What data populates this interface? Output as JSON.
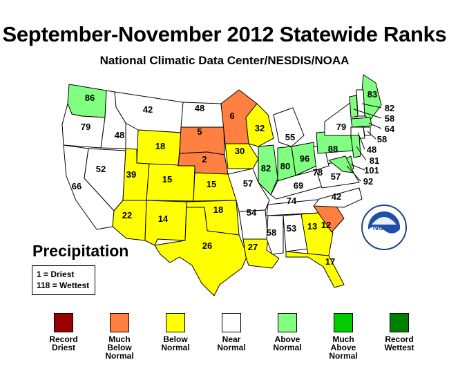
{
  "title": "September-November 2012 Statewide Ranks",
  "subtitle": "National Climatic Data Center/NESDIS/NOAA",
  "variable": "Precipitation",
  "key": {
    "driest": "1 = Driest",
    "wettest": "118 = Wettest"
  },
  "logo_text": "NOAA",
  "colors": {
    "record_driest": "#990000",
    "much_below": "#ff8040",
    "below": "#ffff00",
    "near": "#ffffff",
    "above": "#80ff80",
    "much_above": "#00cc00",
    "record_wettest": "#008000"
  },
  "legend": [
    {
      "label": "Record Driest",
      "color": "#990000"
    },
    {
      "label": "Much Below Normal",
      "color": "#ff8040"
    },
    {
      "label": "Below Normal",
      "color": "#ffff00"
    },
    {
      "label": "Near Normal",
      "color": "#ffffff"
    },
    {
      "label": "Above Normal",
      "color": "#80ff80"
    },
    {
      "label": "Much Above Normal",
      "color": "#00cc00"
    },
    {
      "label": "Record Wettest",
      "color": "#008000"
    }
  ],
  "states": [
    {
      "state": "WA",
      "rank": 86,
      "category": "above"
    },
    {
      "state": "OR",
      "rank": 79,
      "category": "near"
    },
    {
      "state": "CA",
      "rank": 66,
      "category": "near"
    },
    {
      "state": "ID",
      "rank": 48,
      "category": "near"
    },
    {
      "state": "NV",
      "rank": 52,
      "category": "near"
    },
    {
      "state": "MT",
      "rank": 42,
      "category": "near"
    },
    {
      "state": "WY",
      "rank": 18,
      "category": "below"
    },
    {
      "state": "UT",
      "rank": 39,
      "category": "below"
    },
    {
      "state": "AZ",
      "rank": 22,
      "category": "below"
    },
    {
      "state": "CO",
      "rank": 15,
      "category": "below"
    },
    {
      "state": "NM",
      "rank": 14,
      "category": "below"
    },
    {
      "state": "ND",
      "rank": 48,
      "category": "near"
    },
    {
      "state": "SD",
      "rank": 5,
      "category": "much_below"
    },
    {
      "state": "NE",
      "rank": 2,
      "category": "much_below"
    },
    {
      "state": "KS",
      "rank": 15,
      "category": "below"
    },
    {
      "state": "OK",
      "rank": 18,
      "category": "below"
    },
    {
      "state": "TX",
      "rank": 26,
      "category": "below"
    },
    {
      "state": "MN",
      "rank": 6,
      "category": "much_below"
    },
    {
      "state": "IA",
      "rank": 30,
      "category": "below"
    },
    {
      "state": "MO",
      "rank": 57,
      "category": "near"
    },
    {
      "state": "AR",
      "rank": 54,
      "category": "near"
    },
    {
      "state": "LA",
      "rank": 27,
      "category": "below"
    },
    {
      "state": "WI",
      "rank": 32,
      "category": "below"
    },
    {
      "state": "IL",
      "rank": 82,
      "category": "above"
    },
    {
      "state": "MI",
      "rank": 55,
      "category": "near"
    },
    {
      "state": "IN",
      "rank": 80,
      "category": "above"
    },
    {
      "state": "OH",
      "rank": 96,
      "category": "above"
    },
    {
      "state": "KY",
      "rank": 69,
      "category": "near"
    },
    {
      "state": "TN",
      "rank": 74,
      "category": "near"
    },
    {
      "state": "MS",
      "rank": 58,
      "category": "near"
    },
    {
      "state": "AL",
      "rank": 53,
      "category": "near"
    },
    {
      "state": "GA",
      "rank": 13,
      "category": "below"
    },
    {
      "state": "FL",
      "rank": 17,
      "category": "below"
    },
    {
      "state": "SC",
      "rank": 12,
      "category": "much_below"
    },
    {
      "state": "NC",
      "rank": 42,
      "category": "near"
    },
    {
      "state": "VA",
      "rank": 57,
      "category": "near"
    },
    {
      "state": "WV",
      "rank": 78,
      "category": "near"
    },
    {
      "state": "PA",
      "rank": 88,
      "category": "above"
    },
    {
      "state": "NY",
      "rank": 79,
      "category": "near"
    },
    {
      "state": "ME",
      "rank": 83,
      "category": "above"
    },
    {
      "state": "NH",
      "rank": 82,
      "category": "near"
    },
    {
      "state": "VT",
      "rank": 58,
      "category": "above"
    },
    {
      "state": "MA",
      "rank": 64,
      "category": "above"
    },
    {
      "state": "RI",
      "rank": 58,
      "category": "near"
    },
    {
      "state": "CT",
      "rank": 48,
      "category": "near"
    },
    {
      "state": "NJ",
      "rank": 81,
      "category": "above"
    },
    {
      "state": "DE",
      "rank": 101,
      "category": "above"
    },
    {
      "state": "MD",
      "rank": 92,
      "category": "above"
    }
  ]
}
